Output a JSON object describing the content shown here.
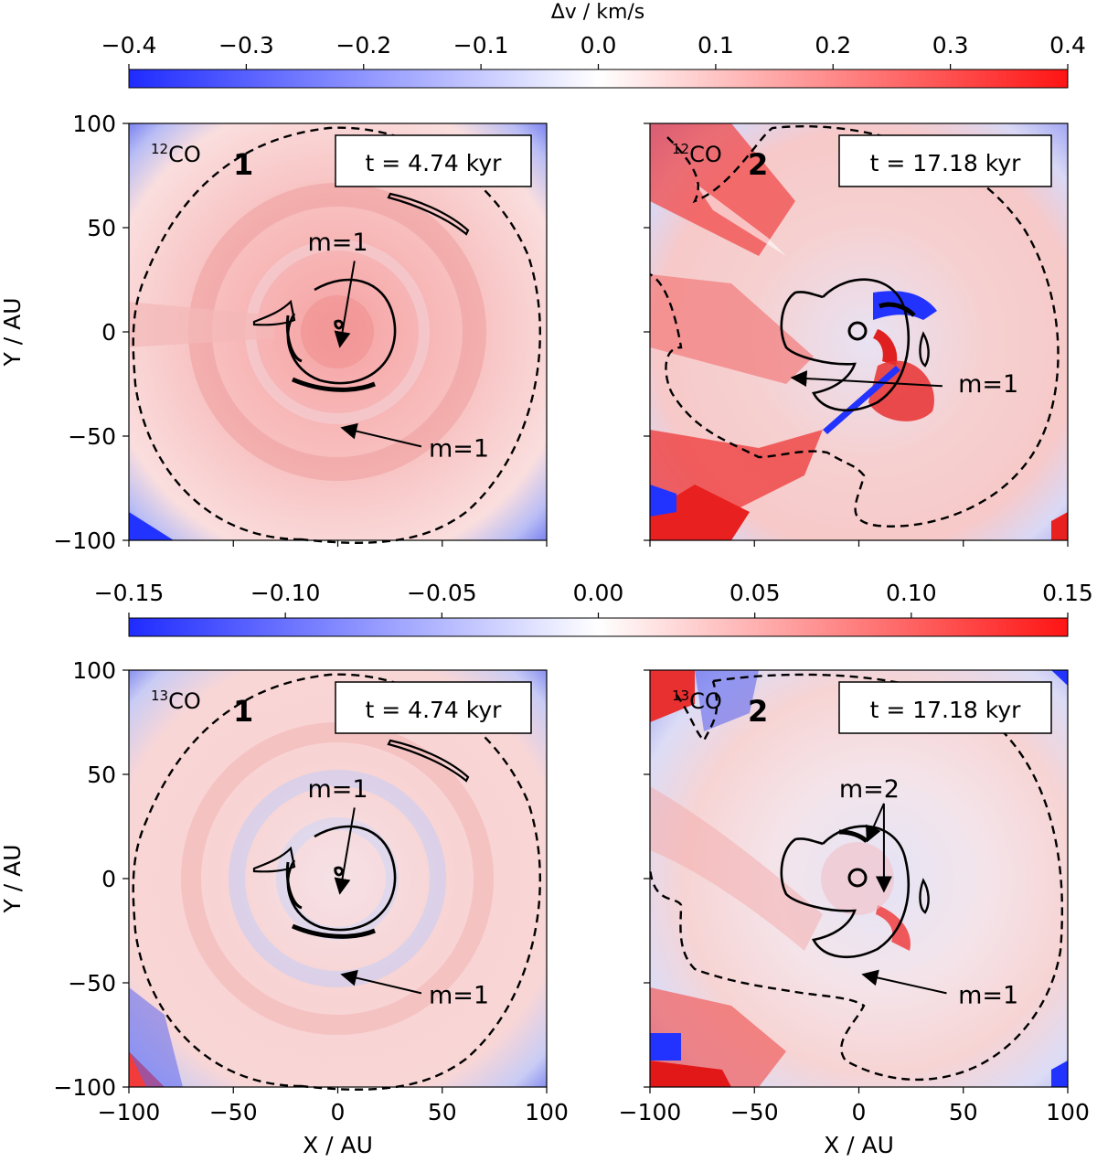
{
  "figure": {
    "colorbar_top": {
      "label": "Δv / km/s",
      "min": -0.4,
      "max": 0.4,
      "tick_values": [
        -0.4,
        -0.3,
        -0.2,
        -0.1,
        0.0,
        0.1,
        0.2,
        0.3,
        0.4
      ],
      "tick_labels": [
        "−0.4",
        "−0.3",
        "−0.2",
        "−0.1",
        "0.0",
        "0.1",
        "0.2",
        "0.3",
        "0.4"
      ],
      "colors": {
        "low": "#1f2bff",
        "mid": "#ffffff",
        "high": "#ff1414"
      }
    },
    "colorbar_bottom": {
      "min": -0.15,
      "max": 0.15,
      "tick_values": [
        -0.15,
        -0.1,
        -0.05,
        0.0,
        0.05,
        0.1,
        0.15
      ],
      "tick_labels": [
        "−0.15",
        "−0.10",
        "−0.05",
        "0.00",
        "0.05",
        "0.10",
        "0.15"
      ],
      "colors": {
        "low": "#1f2bff",
        "mid": "#ffffff",
        "high": "#ff1414"
      }
    }
  },
  "chart_data": [
    {
      "type": "heatmap",
      "id": "p1",
      "species": "12CO",
      "species_sup": "12",
      "species_base": "CO",
      "panel_number": "1",
      "time_label": "t = 4.74 kyr",
      "xlabel": "",
      "ylabel": "Y / AU",
      "xlim": [
        -100,
        100
      ],
      "ylim": [
        -100,
        100
      ],
      "x_ticks": [
        -100,
        -50,
        0,
        50,
        100
      ],
      "y_ticks": [
        -100,
        -50,
        0,
        50,
        100
      ],
      "y_tick_labels": [
        "−100",
        "−50",
        "0",
        "50",
        "100"
      ],
      "x_tick_labels": [],
      "annotations": [
        {
          "text": "m=1",
          "text_pos": [
            0,
            43
          ],
          "arrow_from": [
            8,
            34
          ],
          "arrow_to": [
            1,
            -7
          ]
        },
        {
          "text": "m=1",
          "text_pos": [
            58,
            -56
          ],
          "arrow_from": [
            40,
            -55
          ],
          "arrow_to": [
            2,
            -46
          ]
        }
      ]
    },
    {
      "type": "heatmap",
      "id": "p2",
      "species": "12CO",
      "species_sup": "12",
      "species_base": "CO",
      "panel_number": "2",
      "time_label": "t = 17.18 kyr",
      "xlabel": "",
      "ylabel": "",
      "xlim": [
        -100,
        100
      ],
      "ylim": [
        -100,
        100
      ],
      "x_ticks": [
        -100,
        -50,
        0,
        50,
        100
      ],
      "y_ticks": [
        -100,
        -50,
        0,
        50,
        100
      ],
      "y_tick_labels": [],
      "x_tick_labels": [],
      "annotations": [
        {
          "text": "m=1",
          "text_pos": [
            62,
            -25
          ],
          "arrow_from": [
            40,
            -26
          ],
          "arrow_to": [
            -32,
            -22
          ]
        }
      ]
    },
    {
      "type": "heatmap",
      "id": "p3",
      "species": "13CO",
      "species_sup": "13",
      "species_base": "CO",
      "panel_number": "1",
      "time_label": "t = 4.74 kyr",
      "xlabel": "X / AU",
      "ylabel": "Y / AU",
      "xlim": [
        -100,
        100
      ],
      "ylim": [
        -100,
        100
      ],
      "x_ticks": [
        -100,
        -50,
        0,
        50,
        100
      ],
      "y_ticks": [
        -100,
        -50,
        0,
        50,
        100
      ],
      "x_tick_labels": [
        "−100",
        "−50",
        "0",
        "50",
        "100"
      ],
      "y_tick_labels": [
        "−100",
        "−50",
        "0",
        "50",
        "100"
      ],
      "annotations": [
        {
          "text": "m=1",
          "text_pos": [
            0,
            43
          ],
          "arrow_from": [
            8,
            34
          ],
          "arrow_to": [
            1,
            -7
          ]
        },
        {
          "text": "m=1",
          "text_pos": [
            58,
            -56
          ],
          "arrow_from": [
            40,
            -55
          ],
          "arrow_to": [
            2,
            -46
          ]
        }
      ]
    },
    {
      "type": "heatmap",
      "id": "p4",
      "species": "13CO",
      "species_sup": "13",
      "species_base": "CO",
      "panel_number": "2",
      "time_label": "t = 17.18 kyr",
      "xlabel": "X / AU",
      "ylabel": "",
      "xlim": [
        -100,
        100
      ],
      "ylim": [
        -100,
        100
      ],
      "x_ticks": [
        -100,
        -50,
        0,
        50,
        100
      ],
      "y_ticks": [
        -100,
        -50,
        0,
        50,
        100
      ],
      "x_tick_labels": [
        "−100",
        "−50",
        "0",
        "50",
        "100"
      ],
      "y_tick_labels": [],
      "annotations": [
        {
          "text": "m=2",
          "text_pos": [
            5,
            43
          ],
          "arrow_from": [
            12,
            36
          ],
          "arrow_to": [
            4,
            18
          ]
        },
        {
          "text": "m=2",
          "text_pos": [
            5,
            43
          ],
          "arrow_from": [
            12,
            36
          ],
          "arrow_to": [
            12,
            -6
          ],
          "label_hidden": true
        },
        {
          "text": "m=1",
          "text_pos": [
            62,
            -56
          ],
          "arrow_from": [
            42,
            -55
          ],
          "arrow_to": [
            2,
            -46
          ]
        }
      ]
    }
  ]
}
